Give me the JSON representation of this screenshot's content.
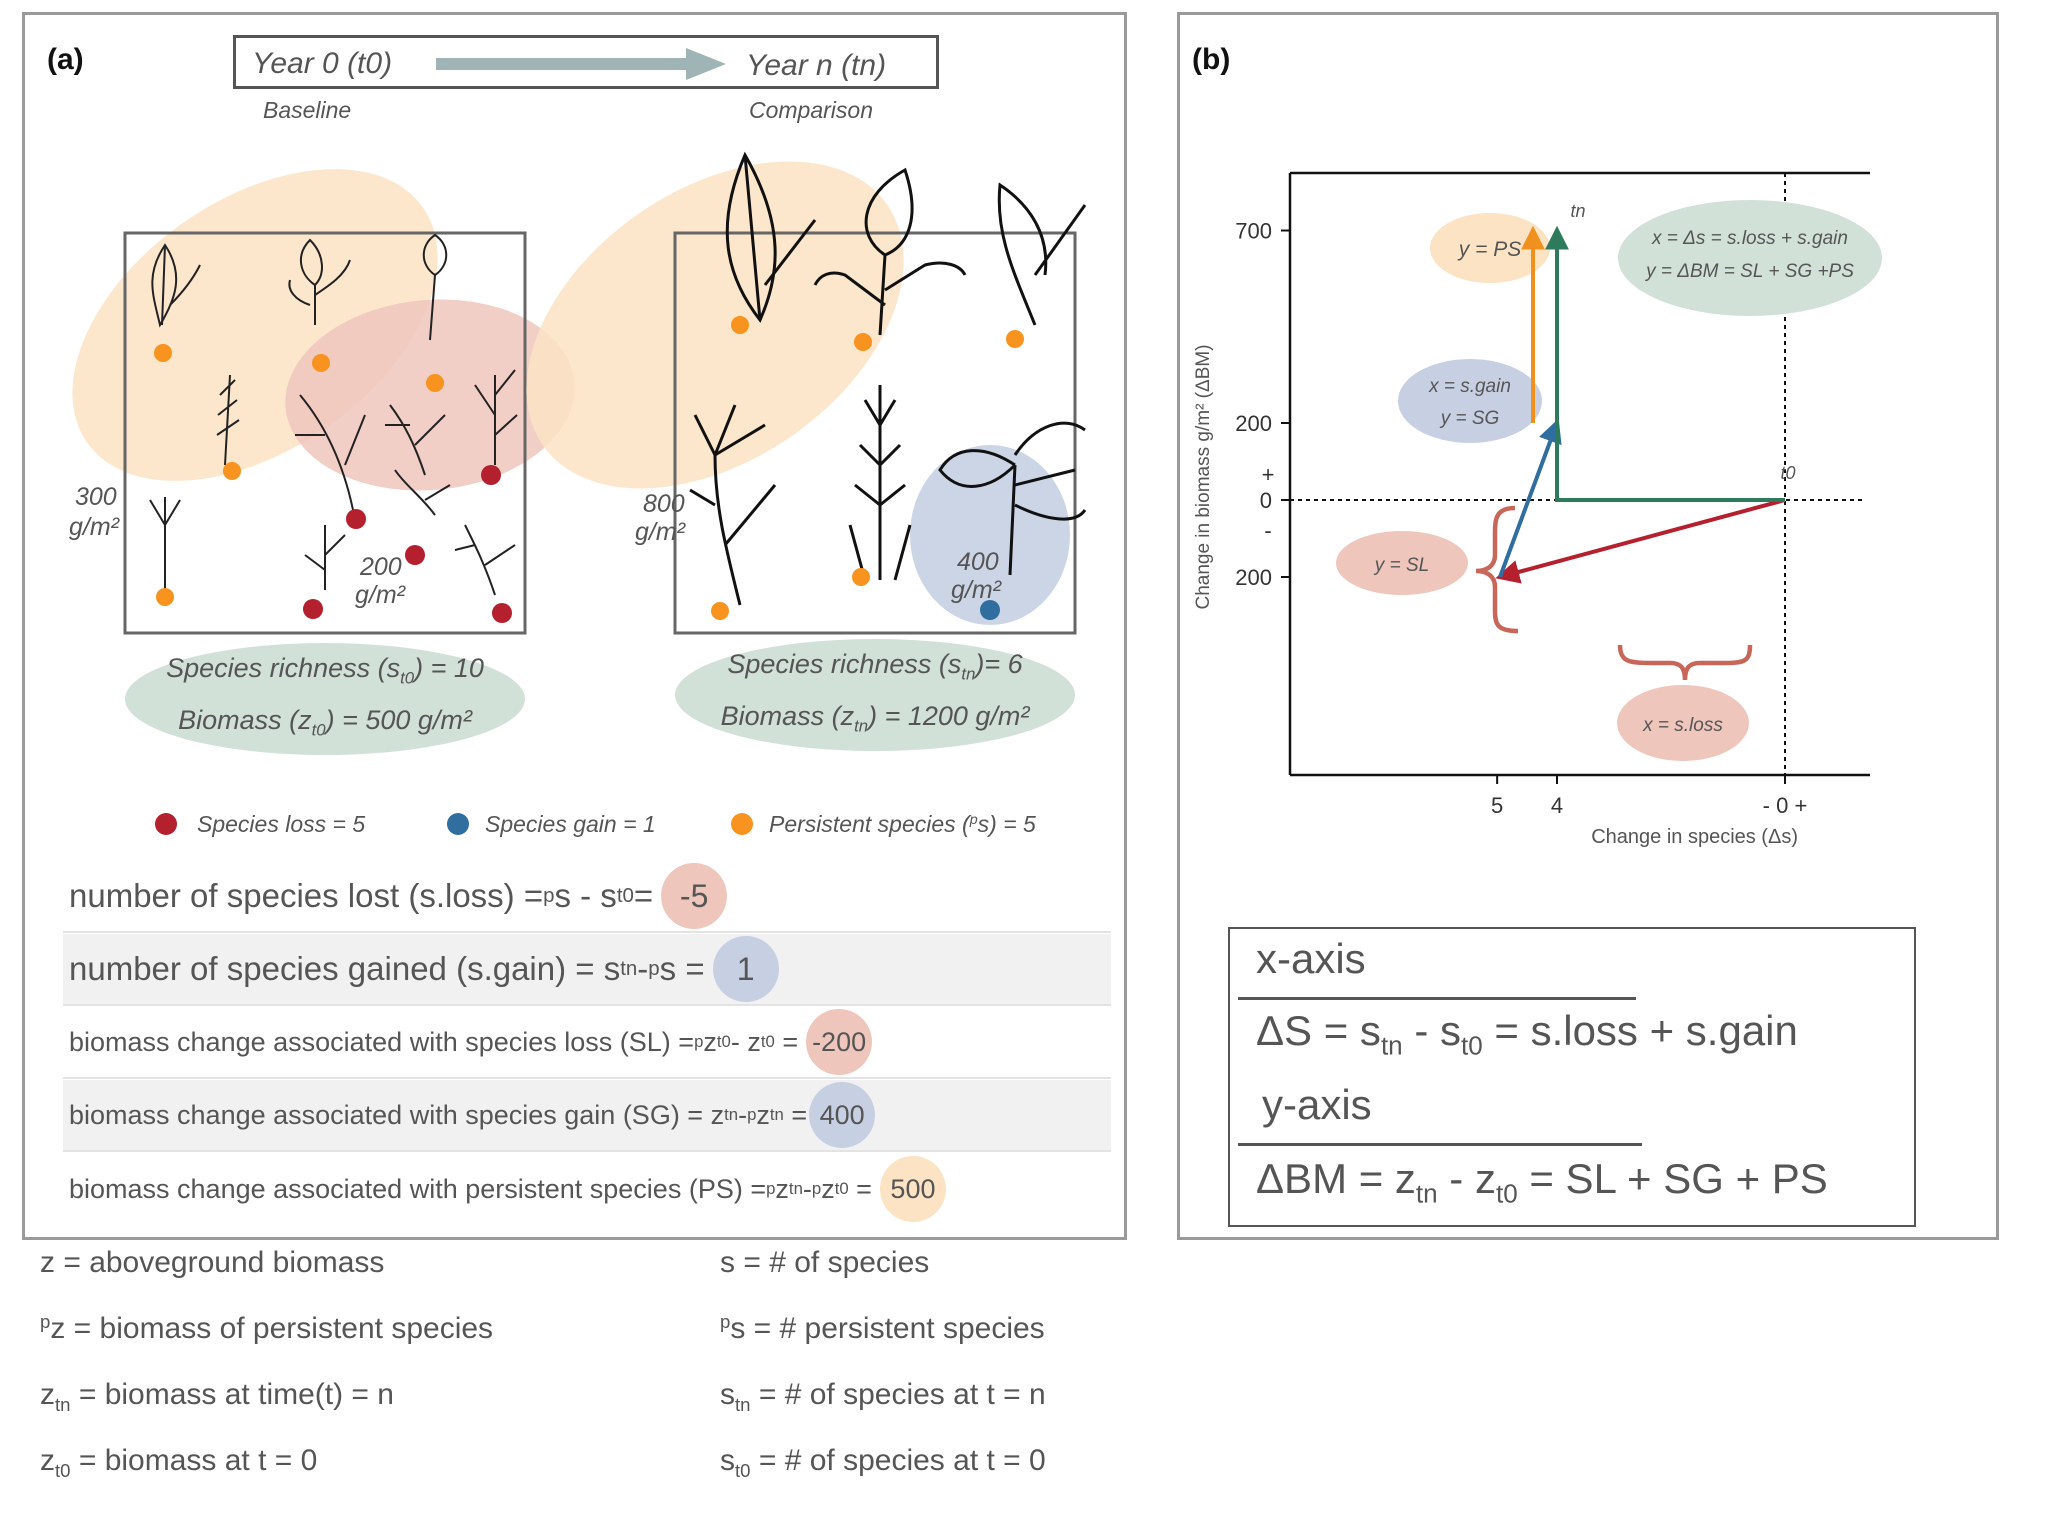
{
  "panel_a": {
    "label": "(a)",
    "timeline": {
      "start": "Year 0 (t0)",
      "end": "Year n (tn)",
      "start_caption": "Baseline",
      "end_caption": "Comparison"
    },
    "baseline_plot": {
      "persistent_biomass": [
        "300",
        "g/m²"
      ],
      "lost_biomass": [
        "200",
        "g/m²"
      ],
      "summary_line1_pre": "Species richness (s",
      "summary_line1_sub": "t0",
      "summary_line1_post": ") = 10",
      "summary_line2_pre": "Biomass (z",
      "summary_line2_sub": "t0",
      "summary_line2_post": ") = 500 g/m²"
    },
    "comparison_plot": {
      "persistent_biomass": [
        "800",
        "g/m²"
      ],
      "gained_biomass": [
        "400",
        "g/m²"
      ],
      "summary_line1_pre": "Species richness (s",
      "summary_line1_sub": "tn",
      "summary_line1_post": ")= 6",
      "summary_line2_pre": "Biomass (z",
      "summary_line2_sub": "tn",
      "summary_line2_post": ") = 1200 g/m²"
    },
    "legend": {
      "loss": "Species loss = 5",
      "gain": "Species gain = 1",
      "persistent_pre": "Persistent species (",
      "persistent_sup": "p",
      "persistent_post": "s) = 5"
    },
    "equations": [
      {
        "text_pre": "number of species lost (s.loss) = ",
        "sup1": "p",
        "mid1": "s - s",
        "sub1": "t0",
        "mid2": " = ",
        "sup2": "",
        "mid3": "",
        "sub2": "",
        "value": "-5"
      },
      {
        "text_pre": "number of species gained (s.gain) = s",
        "sup1": "",
        "mid1": "",
        "sub1": "tn",
        "mid2": " - ",
        "sup2": "p",
        "mid3": "s = ",
        "sub2": "",
        "value": "1"
      },
      {
        "text_pre": "biomass change associated with species loss (SL) = ",
        "sup1": "p",
        "mid1": "z",
        "sub1": "t0",
        "mid2": " - z",
        "sup2": "",
        "mid3": "",
        "sub2": "t0",
        "value": "-200"
      },
      {
        "text_pre": "biomass change associated with species gain (SG) = z",
        "sup1": "",
        "mid1": "",
        "sub1": "tn",
        "mid2": " - ",
        "sup2": "p",
        "mid3": "z",
        "sub2": "tn",
        "value": "400"
      },
      {
        "text_pre": "biomass change associated with persistent species (PS) = ",
        "sup1": "p",
        "mid1": "z",
        "sub1": "tn",
        "mid2": " - ",
        "sup2": "p",
        "mid3": "z",
        "sub2": "t0",
        "value": "500"
      }
    ]
  },
  "definitions": {
    "left": [
      {
        "sup": "",
        "base": "z",
        "sub": "",
        "rest": " = aboveground biomass"
      },
      {
        "sup": "p",
        "base": "z",
        "sub": "",
        "rest": " = biomass of persistent species"
      },
      {
        "sup": "",
        "base": "z",
        "sub": "tn",
        "rest": " = biomass at time(t) = n"
      },
      {
        "sup": "",
        "base": "z",
        "sub": "t0",
        "rest": " = biomass at t = 0"
      }
    ],
    "right": [
      {
        "sup": "",
        "base": "s",
        "sub": "",
        "rest": " = # of species"
      },
      {
        "sup": "p",
        "base": "s",
        "sub": "",
        "rest": " = # persistent species"
      },
      {
        "sup": "",
        "base": "s",
        "sub": "tn",
        "rest": " = # of species at t = n"
      },
      {
        "sup": "",
        "base": "s",
        "sub": "t0",
        "rest": " = # of species at t = 0"
      }
    ]
  },
  "panel_b": {
    "label": "(b)",
    "bubbles": {
      "ps": "y = PS",
      "total_x": "x = Δs = s.loss + s.gain",
      "total_y": "y = ΔBM = SL + SG +PS",
      "gain_x": "x = s.gain",
      "gain_y": "y = SG",
      "sl": "y = SL",
      "sloss": "x = s.loss"
    },
    "point_labels": {
      "tn": "tn",
      "t0": "t0"
    },
    "axis_box": {
      "x_title": "x-axis",
      "x_eq_pre": "ΔS = s",
      "x_eq_sub1": "tn",
      "x_eq_mid": " - s",
      "x_eq_sub2": "t0",
      "x_eq_post": " = s.loss + s.gain",
      "y_title": "y-axis",
      "y_eq_pre": "ΔBM = z",
      "y_eq_sub1": "tn",
      "y_eq_mid": " - z",
      "y_eq_sub2": "t0",
      "y_eq_post": " = SL + SG + PS"
    }
  },
  "chart_data": {
    "type": "line",
    "xlabel": "Change in species (Δs)",
    "ylabel": "Change in biomass g/m²  (ΔBM)",
    "x_ticks": [
      "5",
      "4",
      "- 0 +"
    ],
    "y_ticks": [
      "700",
      "200",
      "+",
      "0",
      "-",
      "200"
    ],
    "series": [
      {
        "name": "y = SL",
        "color": "#b5202e",
        "points": [
          [
            0,
            0
          ],
          [
            -5,
            -200
          ]
        ]
      },
      {
        "name": "y = SG",
        "color": "#2f6e9e",
        "points": [
          [
            -5,
            -200
          ],
          [
            -4,
            200
          ]
        ]
      },
      {
        "name": "y = PS",
        "color": "#f0901e",
        "points": [
          [
            -4,
            200
          ],
          [
            -4,
            700
          ]
        ]
      },
      {
        "name": "ΔBM",
        "color": "#2e7a5c",
        "points": [
          [
            0,
            0
          ],
          [
            -4,
            0
          ],
          [
            -4,
            700
          ]
        ]
      }
    ]
  },
  "colors": {
    "persistent": "#f7931e",
    "persistent_fill": "#fbe3c4",
    "loss": "#b5202e",
    "loss_fill": "#efc6bc",
    "gain": "#2f6e9e",
    "gain_fill": "#c7d0e3",
    "summary_fill": "#d1e1d8",
    "arrow": "#9fb5b5"
  }
}
